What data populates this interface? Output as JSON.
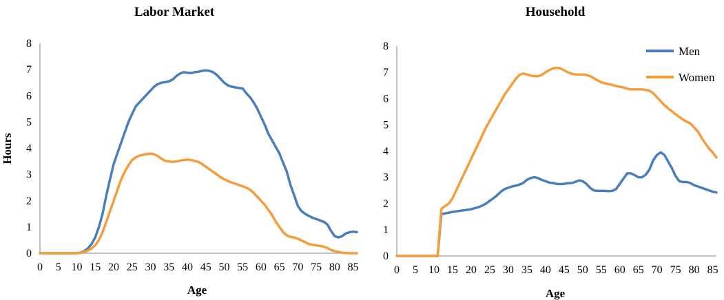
{
  "chart_data": [
    {
      "type": "line",
      "title": "Labor Market",
      "xlabel": "Age",
      "ylabel": "Hours",
      "xlim": [
        0,
        86
      ],
      "ylim": [
        0,
        8
      ],
      "xticks": [
        0,
        5,
        10,
        15,
        20,
        25,
        30,
        35,
        40,
        45,
        50,
        55,
        60,
        65,
        70,
        75,
        80,
        85
      ],
      "yticks": [
        0,
        1,
        2,
        3,
        4,
        5,
        6,
        7,
        8
      ],
      "grid": false,
      "legend": "none",
      "series": [
        {
          "name": "Men",
          "color": "#4a7ebb",
          "x": [
            0,
            10,
            11,
            12,
            13,
            14,
            15,
            16,
            17,
            18,
            19,
            20,
            21,
            22,
            23,
            24,
            25,
            26,
            27,
            28,
            29,
            30,
            31,
            32,
            33,
            34,
            35,
            36,
            37,
            38,
            39,
            40,
            41,
            42,
            43,
            44,
            45,
            46,
            47,
            48,
            49,
            50,
            51,
            52,
            53,
            54,
            55,
            56,
            57,
            58,
            59,
            60,
            61,
            62,
            63,
            64,
            65,
            66,
            67,
            68,
            69,
            70,
            71,
            72,
            73,
            74,
            75,
            76,
            77,
            78,
            79,
            80,
            81,
            82,
            83,
            84,
            85,
            86
          ],
          "y": [
            0,
            0,
            0.02,
            0.08,
            0.18,
            0.35,
            0.6,
            1.0,
            1.5,
            2.2,
            2.8,
            3.4,
            3.8,
            4.2,
            4.6,
            5.0,
            5.3,
            5.6,
            5.75,
            5.9,
            6.05,
            6.2,
            6.35,
            6.45,
            6.5,
            6.52,
            6.55,
            6.62,
            6.75,
            6.85,
            6.9,
            6.88,
            6.87,
            6.9,
            6.92,
            6.95,
            6.97,
            6.95,
            6.9,
            6.8,
            6.65,
            6.5,
            6.4,
            6.35,
            6.32,
            6.3,
            6.28,
            6.1,
            5.95,
            5.75,
            5.5,
            5.2,
            4.9,
            4.55,
            4.3,
            4.05,
            3.8,
            3.45,
            3.1,
            2.6,
            2.2,
            1.8,
            1.6,
            1.5,
            1.42,
            1.35,
            1.3,
            1.25,
            1.2,
            1.1,
            0.85,
            0.65,
            0.6,
            0.65,
            0.75,
            0.8,
            0.82,
            0.8
          ]
        },
        {
          "name": "Women",
          "color": "#f59d3d",
          "x": [
            0,
            10,
            11,
            12,
            13,
            14,
            15,
            16,
            17,
            18,
            19,
            20,
            21,
            22,
            23,
            24,
            25,
            26,
            27,
            28,
            29,
            30,
            31,
            32,
            33,
            34,
            35,
            36,
            37,
            38,
            39,
            40,
            41,
            42,
            43,
            44,
            45,
            46,
            47,
            48,
            49,
            50,
            51,
            52,
            53,
            54,
            55,
            56,
            57,
            58,
            59,
            60,
            61,
            62,
            63,
            64,
            65,
            66,
            67,
            68,
            69,
            70,
            71,
            72,
            73,
            74,
            75,
            76,
            77,
            78,
            79,
            80,
            81,
            82,
            83,
            84,
            85,
            86
          ],
          "y": [
            0,
            0,
            0.01,
            0.05,
            0.1,
            0.18,
            0.3,
            0.5,
            0.8,
            1.2,
            1.6,
            2.0,
            2.4,
            2.8,
            3.1,
            3.35,
            3.55,
            3.65,
            3.72,
            3.75,
            3.78,
            3.8,
            3.77,
            3.7,
            3.6,
            3.52,
            3.5,
            3.48,
            3.5,
            3.53,
            3.55,
            3.57,
            3.55,
            3.52,
            3.48,
            3.4,
            3.3,
            3.2,
            3.1,
            3.0,
            2.9,
            2.82,
            2.75,
            2.7,
            2.65,
            2.6,
            2.55,
            2.5,
            2.42,
            2.3,
            2.15,
            2.0,
            1.85,
            1.65,
            1.45,
            1.2,
            1.0,
            0.8,
            0.68,
            0.62,
            0.6,
            0.55,
            0.48,
            0.42,
            0.35,
            0.32,
            0.3,
            0.28,
            0.25,
            0.2,
            0.12,
            0.08,
            0.05,
            0.02,
            0.01,
            0,
            0,
            0
          ]
        }
      ]
    },
    {
      "type": "line",
      "title": "Household",
      "xlabel": "Age",
      "ylabel": "",
      "xlim": [
        0,
        86
      ],
      "ylim": [
        0,
        8
      ],
      "xticks": [
        0,
        5,
        10,
        15,
        20,
        25,
        30,
        35,
        40,
        45,
        50,
        55,
        60,
        65,
        70,
        75,
        80,
        85
      ],
      "yticks": [
        0,
        1,
        2,
        3,
        4,
        5,
        6,
        7,
        8
      ],
      "grid": false,
      "legend": "top-right",
      "series": [
        {
          "name": "Men",
          "color": "#4a7ebb",
          "x": [
            0,
            11,
            12,
            13,
            14,
            15,
            16,
            17,
            18,
            19,
            20,
            21,
            22,
            23,
            24,
            25,
            26,
            27,
            28,
            29,
            30,
            31,
            32,
            33,
            34,
            35,
            36,
            37,
            38,
            39,
            40,
            41,
            42,
            43,
            44,
            45,
            46,
            47,
            48,
            49,
            50,
            51,
            52,
            53,
            54,
            55,
            56,
            57,
            58,
            59,
            60,
            61,
            62,
            63,
            64,
            65,
            66,
            67,
            68,
            69,
            70,
            71,
            72,
            73,
            74,
            75,
            76,
            77,
            78,
            79,
            80,
            81,
            82,
            83,
            84,
            85,
            86
          ],
          "y": [
            0,
            0,
            1.6,
            1.62,
            1.65,
            1.68,
            1.7,
            1.72,
            1.74,
            1.76,
            1.78,
            1.82,
            1.86,
            1.92,
            2.0,
            2.1,
            2.2,
            2.32,
            2.45,
            2.55,
            2.6,
            2.65,
            2.68,
            2.72,
            2.78,
            2.9,
            2.97,
            3.0,
            2.97,
            2.9,
            2.85,
            2.8,
            2.78,
            2.75,
            2.74,
            2.75,
            2.77,
            2.78,
            2.82,
            2.88,
            2.85,
            2.75,
            2.6,
            2.5,
            2.48,
            2.48,
            2.48,
            2.47,
            2.48,
            2.55,
            2.75,
            2.95,
            3.15,
            3.15,
            3.08,
            3.0,
            3.0,
            3.1,
            3.3,
            3.65,
            3.85,
            3.95,
            3.85,
            3.6,
            3.35,
            3.05,
            2.85,
            2.82,
            2.82,
            2.78,
            2.7,
            2.65,
            2.6,
            2.55,
            2.5,
            2.45,
            2.42
          ]
        },
        {
          "name": "Women",
          "color": "#f59d3d",
          "x": [
            0,
            11,
            12,
            13,
            14,
            15,
            16,
            17,
            18,
            19,
            20,
            21,
            22,
            23,
            24,
            25,
            26,
            27,
            28,
            29,
            30,
            31,
            32,
            33,
            34,
            35,
            36,
            37,
            38,
            39,
            40,
            41,
            42,
            43,
            44,
            45,
            46,
            47,
            48,
            49,
            50,
            51,
            52,
            53,
            54,
            55,
            56,
            57,
            58,
            59,
            60,
            61,
            62,
            63,
            64,
            65,
            66,
            67,
            68,
            69,
            70,
            71,
            72,
            73,
            74,
            75,
            76,
            77,
            78,
            79,
            80,
            81,
            82,
            83,
            84,
            85,
            86
          ],
          "y": [
            0,
            0,
            1.8,
            1.9,
            2.0,
            2.2,
            2.5,
            2.8,
            3.1,
            3.4,
            3.7,
            4.0,
            4.3,
            4.6,
            4.9,
            5.15,
            5.4,
            5.65,
            5.9,
            6.15,
            6.35,
            6.55,
            6.75,
            6.9,
            6.95,
            6.92,
            6.88,
            6.85,
            6.85,
            6.9,
            7.0,
            7.08,
            7.15,
            7.18,
            7.15,
            7.08,
            7.0,
            6.95,
            6.92,
            6.92,
            6.92,
            6.9,
            6.85,
            6.78,
            6.7,
            6.62,
            6.58,
            6.55,
            6.52,
            6.48,
            6.45,
            6.42,
            6.38,
            6.35,
            6.35,
            6.35,
            6.35,
            6.33,
            6.3,
            6.2,
            6.05,
            5.9,
            5.75,
            5.62,
            5.52,
            5.4,
            5.3,
            5.2,
            5.12,
            5.05,
            4.9,
            4.75,
            4.5,
            4.3,
            4.1,
            3.95,
            3.75
          ]
        }
      ]
    }
  ]
}
